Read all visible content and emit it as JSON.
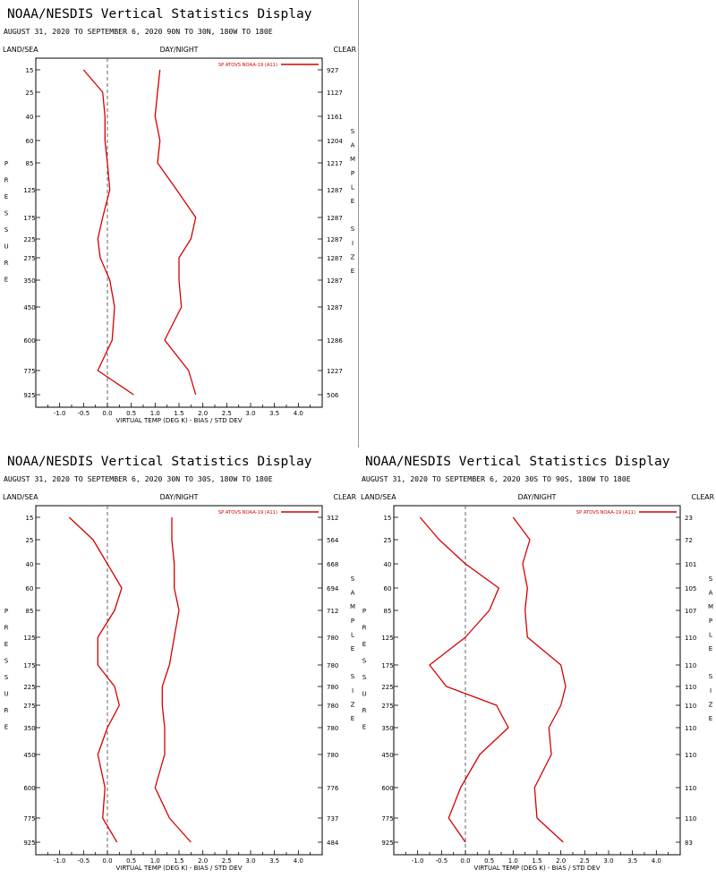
{
  "chart_data": [
    {
      "type": "line",
      "title": "NOAA/NESDIS Vertical Statistics Display",
      "subtitle": "AUGUST 31, 2020 TO SEPTEMBER 6, 2020 90N TO 30N, 180W TO 180E",
      "left_header": "LAND/SEA",
      "center_header": "DAY/NIGHT",
      "right_header": "CLEAR",
      "ylabel": "PRESSURE",
      "y2label": "SAMPLE SIZE",
      "xlabel": "VIRTUAL TEMP (DEG K) - BIAS / STD DEV",
      "xlim": [
        -1.5,
        4.5
      ],
      "xticks": [
        "-1.0",
        "-0.5",
        "0.0",
        "0.5",
        "1.0",
        "1.5",
        "2.0",
        "2.5",
        "3.0",
        "3.5",
        "4.0"
      ],
      "pressure_levels": [
        "15",
        "25",
        "40",
        "60",
        "85",
        "125",
        "175",
        "225",
        "275",
        "350",
        "450",
        "600",
        "775",
        "925"
      ],
      "sample_size": [
        "927",
        "1127",
        "1161",
        "1204",
        "1217",
        "1287",
        "1287",
        "1287",
        "1287",
        "1287",
        "1287",
        "1286",
        "1227",
        "506"
      ],
      "legend": "SP ATOVS NOAA-19 (A11)",
      "series": [
        {
          "bias": [
            -0.5,
            -0.1,
            -0.05,
            -0.05,
            0.0,
            0.05,
            -0.1,
            -0.2,
            -0.15,
            0.05,
            0.15,
            0.1,
            -0.2,
            0.55
          ],
          "std": [
            1.1,
            1.05,
            1.0,
            1.1,
            1.05,
            1.45,
            1.85,
            1.75,
            1.5,
            1.5,
            1.55,
            1.2,
            1.7,
            1.85
          ]
        }
      ]
    },
    {
      "type": "line",
      "title": "NOAA/NESDIS Vertical Statistics Display",
      "subtitle": "AUGUST 31, 2020 TO SEPTEMBER 6, 2020 30N TO 30S, 180W TO 180E",
      "left_header": "LAND/SEA",
      "center_header": "DAY/NIGHT",
      "right_header": "CLEAR",
      "ylabel": "PRESSURE",
      "y2label": "SAMPLE SIZE",
      "xlabel": "VIRTUAL TEMP (DEG K) - BIAS / STD DEV",
      "xlim": [
        -1.5,
        4.5
      ],
      "xticks": [
        "-1.0",
        "-0.5",
        "0.0",
        "0.5",
        "1.0",
        "1.5",
        "2.0",
        "2.5",
        "3.0",
        "3.5",
        "4.0"
      ],
      "pressure_levels": [
        "15",
        "25",
        "40",
        "60",
        "85",
        "125",
        "175",
        "225",
        "275",
        "350",
        "450",
        "600",
        "775",
        "925"
      ],
      "sample_size": [
        "312",
        "564",
        "668",
        "694",
        "712",
        "780",
        "780",
        "780",
        "780",
        "780",
        "780",
        "776",
        "737",
        "484"
      ],
      "legend": "SP ATOVS NOAA-19 (A11)",
      "series": [
        {
          "bias": [
            -0.8,
            -0.3,
            0.0,
            0.3,
            0.15,
            -0.2,
            -0.2,
            0.15,
            0.25,
            0.0,
            -0.2,
            -0.05,
            -0.1,
            0.2
          ],
          "std": [
            1.35,
            1.35,
            1.4,
            1.4,
            1.5,
            1.4,
            1.3,
            1.15,
            1.15,
            1.2,
            1.2,
            1.0,
            1.3,
            1.75
          ]
        }
      ]
    },
    {
      "type": "line",
      "title": "NOAA/NESDIS Vertical Statistics Display",
      "subtitle": "AUGUST 31, 2020 TO SEPTEMBER 6, 2020 30S TO 90S, 180W TO 180E",
      "left_header": "LAND/SEA",
      "center_header": "DAY/NIGHT",
      "right_header": "CLEAR",
      "ylabel": "PRESSURE",
      "y2label": "SAMPLE SIZE",
      "xlabel": "VIRTUAL TEMP (DEG K) - BIAS / STD DEV",
      "xlim": [
        -1.5,
        4.5
      ],
      "xticks": [
        "-1.0",
        "-0.5",
        "0.0",
        "0.5",
        "1.0",
        "1.5",
        "2.0",
        "2.5",
        "3.0",
        "3.5",
        "4.0"
      ],
      "pressure_levels": [
        "15",
        "25",
        "40",
        "60",
        "85",
        "125",
        "175",
        "225",
        "275",
        "350",
        "450",
        "600",
        "775",
        "925"
      ],
      "sample_size": [
        "23",
        "72",
        "101",
        "105",
        "107",
        "110",
        "110",
        "110",
        "110",
        "110",
        "110",
        "110",
        "110",
        "83"
      ],
      "legend": "SP ATOVS NOAA-19 (A11)",
      "series": [
        {
          "bias": [
            -0.95,
            -0.55,
            0.0,
            0.7,
            0.5,
            0.0,
            -0.75,
            -0.4,
            0.65,
            0.9,
            0.3,
            -0.1,
            -0.35,
            0.0
          ],
          "std": [
            1.0,
            1.35,
            1.2,
            1.3,
            1.25,
            1.3,
            2.0,
            2.1,
            2.0,
            1.75,
            1.8,
            1.45,
            1.5,
            2.05
          ]
        }
      ]
    }
  ],
  "colors": {
    "line": "#d40000",
    "axis": "#000000",
    "zero": "#555555",
    "separator": "#9a9a9a"
  }
}
